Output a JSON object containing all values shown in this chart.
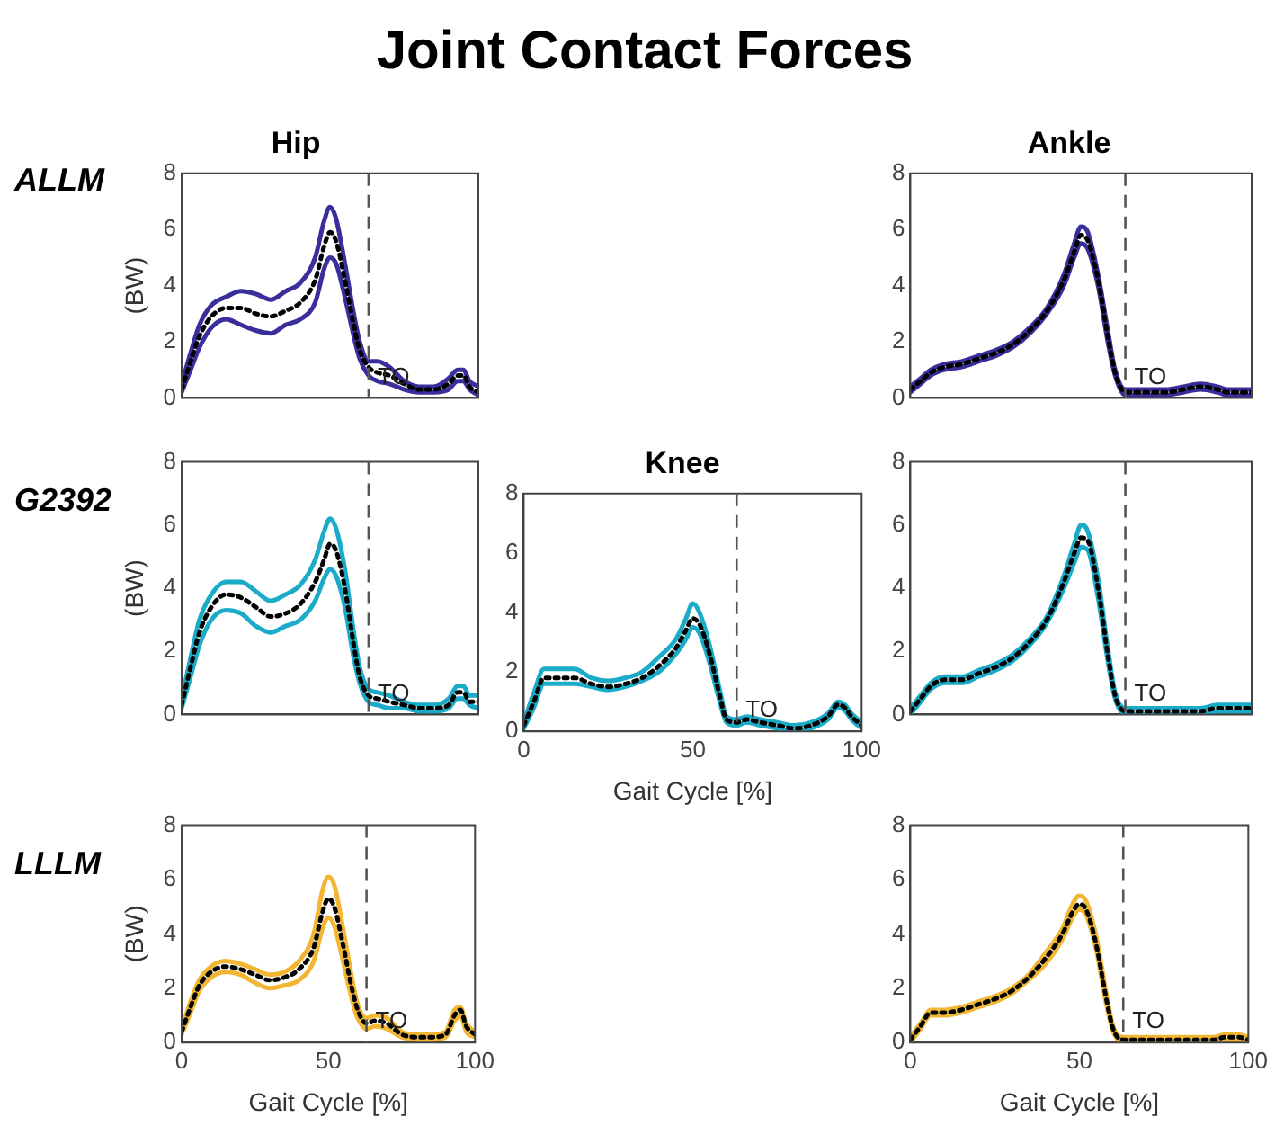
{
  "chart_data": [
    {
      "type": "other",
      "title": "Joint Contact Forces"
    },
    {
      "type": "line",
      "title": "Hip",
      "ylabel": "(BW)",
      "annotations": [
        "ALLM"
      ],
      "x": [
        0,
        3,
        6,
        10,
        15,
        20,
        25,
        30,
        35,
        40,
        45,
        48,
        50,
        52,
        55,
        58,
        60,
        63,
        66,
        70,
        75,
        80,
        85,
        90,
        93,
        95,
        97,
        100
      ],
      "xlim": [
        0,
        100
      ],
      "xticks": [
        0,
        50,
        100
      ],
      "ylim": [
        0,
        8
      ],
      "yticks": [
        0,
        2,
        4,
        6,
        8
      ],
      "tick_labels": "y",
      "ref_lines": [
        {
          "axis": "x",
          "value": 63,
          "label": "TO",
          "line_style": "dashed",
          "color": "#555555"
        }
      ],
      "series": [
        {
          "color": "#3a2e9c",
          "values": [
            0.5,
            1.6,
            2.6,
            3.3,
            3.6,
            3.8,
            3.7,
            3.5,
            3.8,
            4.1,
            5.0,
            6.3,
            6.8,
            6.4,
            4.8,
            3.0,
            2.0,
            1.3,
            1.3,
            1.1,
            0.6,
            0.4,
            0.4,
            0.7,
            1.0,
            1.0,
            0.6,
            0.4
          ]
        },
        {
          "color": "#3a2e9c",
          "values": [
            0.2,
            1.0,
            1.8,
            2.5,
            2.8,
            2.6,
            2.4,
            2.3,
            2.6,
            2.8,
            3.4,
            4.6,
            5.0,
            4.8,
            3.6,
            2.2,
            1.4,
            0.8,
            0.6,
            0.5,
            0.3,
            0.2,
            0.2,
            0.3,
            0.6,
            0.6,
            0.3,
            0.1
          ]
        },
        {
          "color": "#000000",
          "line_style": "dotted",
          "values": [
            0.3,
            1.3,
            2.2,
            2.9,
            3.2,
            3.2,
            3.0,
            2.9,
            3.1,
            3.4,
            4.2,
            5.4,
            5.9,
            5.6,
            4.2,
            2.6,
            1.7,
            1.1,
            0.9,
            0.8,
            0.5,
            0.3,
            0.3,
            0.5,
            0.8,
            0.8,
            0.4,
            0.2
          ]
        }
      ]
    },
    {
      "type": "line",
      "title": "Ankle",
      "x": [
        0,
        3,
        6,
        10,
        15,
        20,
        25,
        30,
        35,
        40,
        45,
        48,
        50,
        52,
        55,
        58,
        60,
        63,
        66,
        70,
        75,
        80,
        85,
        90,
        93,
        95,
        97,
        100
      ],
      "xlim": [
        0,
        100
      ],
      "xticks": [
        0,
        50,
        100
      ],
      "ylim": [
        0,
        8
      ],
      "yticks": [
        0,
        2,
        4,
        6,
        8
      ],
      "tick_labels": "y",
      "ref_lines": [
        {
          "axis": "x",
          "value": 63,
          "label": "TO",
          "line_style": "dashed",
          "color": "#555555"
        }
      ],
      "series": [
        {
          "color": "#3a2e9c",
          "values": [
            0.4,
            0.7,
            1.0,
            1.2,
            1.3,
            1.5,
            1.7,
            2.0,
            2.5,
            3.2,
            4.4,
            5.5,
            6.1,
            5.9,
            4.4,
            2.3,
            1.0,
            0.3,
            0.3,
            0.3,
            0.3,
            0.4,
            0.5,
            0.4,
            0.3,
            0.3,
            0.3,
            0.3
          ]
        },
        {
          "color": "#3a2e9c",
          "values": [
            0.2,
            0.5,
            0.8,
            1.0,
            1.1,
            1.3,
            1.5,
            1.8,
            2.3,
            3.0,
            4.0,
            5.0,
            5.5,
            5.3,
            4.0,
            1.9,
            0.8,
            0.1,
            0.1,
            0.1,
            0.1,
            0.2,
            0.3,
            0.2,
            0.1,
            0.1,
            0.1,
            0.1
          ]
        },
        {
          "color": "#000000",
          "line_style": "dotted",
          "values": [
            0.3,
            0.6,
            0.9,
            1.1,
            1.2,
            1.4,
            1.6,
            1.9,
            2.4,
            3.1,
            4.2,
            5.2,
            5.8,
            5.6,
            4.2,
            2.1,
            0.9,
            0.2,
            0.2,
            0.2,
            0.2,
            0.3,
            0.4,
            0.3,
            0.2,
            0.2,
            0.2,
            0.2
          ]
        }
      ]
    },
    {
      "type": "line",
      "ylabel": "(BW)",
      "annotations": [
        "G2392"
      ],
      "x": [
        0,
        3,
        6,
        10,
        15,
        20,
        25,
        30,
        35,
        40,
        45,
        48,
        50,
        52,
        55,
        58,
        60,
        63,
        66,
        70,
        75,
        80,
        85,
        90,
        93,
        95,
        97,
        100
      ],
      "xlim": [
        0,
        100
      ],
      "xticks": [
        0,
        50,
        100
      ],
      "ylim": [
        0,
        8
      ],
      "yticks": [
        0,
        2,
        4,
        6,
        8
      ],
      "tick_labels": "y",
      "ref_lines": [
        {
          "axis": "x",
          "value": 63,
          "label": "TO",
          "line_style": "dashed",
          "color": "#555555"
        }
      ],
      "series": [
        {
          "color": "#1aabc8",
          "values": [
            0.5,
            1.8,
            3.0,
            3.8,
            4.2,
            4.2,
            3.9,
            3.6,
            3.8,
            4.1,
            4.9,
            5.8,
            6.2,
            5.9,
            4.6,
            2.6,
            1.5,
            0.8,
            0.7,
            0.6,
            0.4,
            0.3,
            0.3,
            0.5,
            0.9,
            0.9,
            0.6,
            0.6
          ]
        },
        {
          "color": "#1aabc8",
          "values": [
            0.2,
            1.2,
            2.2,
            3.0,
            3.3,
            3.2,
            2.8,
            2.6,
            2.8,
            3.0,
            3.6,
            4.3,
            4.6,
            4.4,
            3.4,
            1.8,
            1.0,
            0.4,
            0.3,
            0.2,
            0.2,
            0.1,
            0.1,
            0.2,
            0.5,
            0.5,
            0.3,
            0.2
          ]
        },
        {
          "color": "#000000",
          "line_style": "dotted",
          "values": [
            0.3,
            1.5,
            2.6,
            3.4,
            3.8,
            3.7,
            3.4,
            3.1,
            3.2,
            3.5,
            4.2,
            4.9,
            5.4,
            5.2,
            4.0,
            2.2,
            1.2,
            0.6,
            0.5,
            0.4,
            0.3,
            0.2,
            0.2,
            0.3,
            0.7,
            0.7,
            0.4,
            0.4
          ]
        }
      ]
    },
    {
      "type": "line",
      "title": "Knee",
      "xlabel": "Gait Cycle [%]",
      "x": [
        0,
        3,
        6,
        10,
        15,
        20,
        25,
        30,
        35,
        40,
        45,
        48,
        50,
        52,
        55,
        58,
        60,
        63,
        66,
        70,
        75,
        80,
        85,
        90,
        93,
        95,
        97,
        100
      ],
      "xlim": [
        0,
        100
      ],
      "xticks": [
        0,
        50,
        100
      ],
      "ylim": [
        0,
        8
      ],
      "yticks": [
        0,
        2,
        4,
        6,
        8
      ],
      "ref_lines": [
        {
          "axis": "x",
          "value": 63,
          "label": "TO",
          "line_style": "dashed",
          "color": "#555555"
        }
      ],
      "series": [
        {
          "color": "#1aabc8",
          "values": [
            0.3,
            1.3,
            2.1,
            2.1,
            2.1,
            1.8,
            1.7,
            1.8,
            2.0,
            2.5,
            3.1,
            3.8,
            4.3,
            4.0,
            2.9,
            1.4,
            0.5,
            0.4,
            0.5,
            0.4,
            0.3,
            0.2,
            0.3,
            0.6,
            1.0,
            0.9,
            0.6,
            0.3
          ]
        },
        {
          "color": "#1aabc8",
          "values": [
            0.1,
            0.8,
            1.6,
            1.6,
            1.6,
            1.5,
            1.4,
            1.5,
            1.7,
            2.0,
            2.6,
            3.1,
            3.5,
            3.3,
            2.3,
            1.0,
            0.3,
            0.2,
            0.3,
            0.2,
            0.1,
            0.0,
            0.1,
            0.4,
            0.8,
            0.7,
            0.4,
            0.1
          ]
        },
        {
          "color": "#000000",
          "line_style": "dotted",
          "values": [
            0.2,
            1.0,
            1.8,
            1.8,
            1.8,
            1.6,
            1.5,
            1.6,
            1.8,
            2.2,
            2.8,
            3.4,
            3.8,
            3.6,
            2.6,
            1.2,
            0.4,
            0.3,
            0.4,
            0.3,
            0.2,
            0.1,
            0.2,
            0.5,
            0.9,
            0.8,
            0.5,
            0.2
          ]
        }
      ]
    },
    {
      "type": "line",
      "x": [
        0,
        3,
        6,
        10,
        15,
        20,
        25,
        30,
        35,
        40,
        45,
        48,
        50,
        52,
        55,
        58,
        60,
        63,
        66,
        70,
        75,
        80,
        85,
        90,
        93,
        95,
        97,
        100
      ],
      "xlim": [
        0,
        100
      ],
      "xticks": [
        0,
        50,
        100
      ],
      "ylim": [
        0,
        8
      ],
      "yticks": [
        0,
        2,
        4,
        6,
        8
      ],
      "tick_labels": "y",
      "ref_lines": [
        {
          "axis": "x",
          "value": 63,
          "label": "TO",
          "line_style": "dashed",
          "color": "#555555"
        }
      ],
      "series": [
        {
          "color": "#1aabc8",
          "values": [
            0.2,
            0.6,
            1.0,
            1.2,
            1.2,
            1.4,
            1.6,
            1.9,
            2.4,
            3.1,
            4.4,
            5.4,
            6.0,
            5.8,
            4.3,
            2.0,
            0.7,
            0.2,
            0.2,
            0.2,
            0.2,
            0.2,
            0.2,
            0.3,
            0.3,
            0.3,
            0.3,
            0.3
          ]
        },
        {
          "color": "#1aabc8",
          "values": [
            0.0,
            0.4,
            0.8,
            1.0,
            1.0,
            1.2,
            1.4,
            1.7,
            2.2,
            2.9,
            4.0,
            4.8,
            5.3,
            5.2,
            3.7,
            1.6,
            0.5,
            0.0,
            0.0,
            0.0,
            0.0,
            0.0,
            0.0,
            0.1,
            0.1,
            0.1,
            0.1,
            0.1
          ]
        },
        {
          "color": "#000000",
          "line_style": "dotted",
          "values": [
            0.1,
            0.5,
            0.9,
            1.1,
            1.1,
            1.3,
            1.5,
            1.8,
            2.3,
            3.0,
            4.2,
            5.1,
            5.6,
            5.5,
            4.0,
            1.8,
            0.6,
            0.1,
            0.1,
            0.1,
            0.1,
            0.1,
            0.1,
            0.2,
            0.2,
            0.2,
            0.2,
            0.2
          ]
        }
      ]
    },
    {
      "type": "line",
      "xlabel": "Gait Cycle [%]",
      "ylabel": "(BW)",
      "annotations": [
        "LLLM"
      ],
      "x": [
        0,
        3,
        6,
        10,
        15,
        20,
        25,
        30,
        35,
        40,
        45,
        48,
        50,
        52,
        55,
        58,
        60,
        63,
        66,
        70,
        75,
        80,
        85,
        90,
        93,
        95,
        97,
        100
      ],
      "xlim": [
        0,
        100
      ],
      "xticks": [
        0,
        50,
        100
      ],
      "ylim": [
        0,
        8
      ],
      "yticks": [
        0,
        2,
        4,
        6,
        8
      ],
      "ref_lines": [
        {
          "axis": "x",
          "value": 63,
          "label": "TO",
          "line_style": "dashed",
          "color": "#555555"
        }
      ],
      "series": [
        {
          "color": "#f2b632",
          "values": [
            0.5,
            1.5,
            2.3,
            2.8,
            3.0,
            2.9,
            2.7,
            2.5,
            2.6,
            3.0,
            4.0,
            5.6,
            6.1,
            5.8,
            4.2,
            2.4,
            1.4,
            0.9,
            1.0,
            0.9,
            0.4,
            0.3,
            0.3,
            0.4,
            1.2,
            1.3,
            0.7,
            0.4
          ]
        },
        {
          "color": "#f2b632",
          "values": [
            0.3,
            1.1,
            1.9,
            2.4,
            2.6,
            2.5,
            2.2,
            2.0,
            2.1,
            2.3,
            3.0,
            4.2,
            4.6,
            4.3,
            3.0,
            1.6,
            0.9,
            0.5,
            0.6,
            0.5,
            0.2,
            0.1,
            0.1,
            0.2,
            0.8,
            1.0,
            0.4,
            0.2
          ]
        },
        {
          "color": "#000000",
          "line_style": "dotted",
          "values": [
            0.4,
            1.3,
            2.1,
            2.6,
            2.8,
            2.7,
            2.5,
            2.3,
            2.4,
            2.7,
            3.5,
            4.8,
            5.3,
            5.0,
            3.6,
            2.0,
            1.2,
            0.7,
            0.8,
            0.7,
            0.3,
            0.2,
            0.2,
            0.3,
            1.0,
            1.2,
            0.6,
            0.3
          ]
        }
      ]
    },
    {
      "type": "line",
      "xlabel": "Gait Cycle [%]",
      "x": [
        0,
        3,
        6,
        10,
        15,
        20,
        25,
        30,
        35,
        40,
        45,
        48,
        50,
        52,
        55,
        58,
        60,
        63,
        66,
        70,
        75,
        80,
        85,
        90,
        93,
        95,
        97,
        100
      ],
      "xlim": [
        0,
        100
      ],
      "xticks": [
        0,
        50,
        100
      ],
      "ylim": [
        0,
        8
      ],
      "yticks": [
        0,
        2,
        4,
        6,
        8
      ],
      "ref_lines": [
        {
          "axis": "x",
          "value": 63,
          "label": "TO",
          "line_style": "dashed",
          "color": "#555555"
        }
      ],
      "series": [
        {
          "color": "#f2b632",
          "values": [
            0.2,
            0.7,
            1.2,
            1.2,
            1.3,
            1.5,
            1.7,
            2.0,
            2.5,
            3.3,
            4.2,
            5.1,
            5.4,
            5.2,
            3.9,
            1.8,
            0.6,
            0.2,
            0.2,
            0.2,
            0.2,
            0.2,
            0.2,
            0.2,
            0.3,
            0.3,
            0.3,
            0.2
          ]
        },
        {
          "color": "#f2b632",
          "values": [
            0.0,
            0.5,
            1.0,
            1.0,
            1.1,
            1.3,
            1.5,
            1.8,
            2.3,
            2.9,
            3.8,
            4.6,
            4.9,
            4.7,
            3.4,
            1.4,
            0.4,
            0.0,
            0.0,
            0.0,
            0.0,
            0.0,
            0.0,
            0.0,
            0.1,
            0.1,
            0.1,
            0.0
          ]
        },
        {
          "color": "#000000",
          "line_style": "dotted",
          "values": [
            0.1,
            0.6,
            1.1,
            1.1,
            1.2,
            1.4,
            1.6,
            1.9,
            2.4,
            3.1,
            4.0,
            4.8,
            5.1,
            4.9,
            3.6,
            1.6,
            0.5,
            0.1,
            0.1,
            0.1,
            0.1,
            0.1,
            0.1,
            0.1,
            0.2,
            0.2,
            0.2,
            0.1
          ]
        }
      ]
    }
  ]
}
